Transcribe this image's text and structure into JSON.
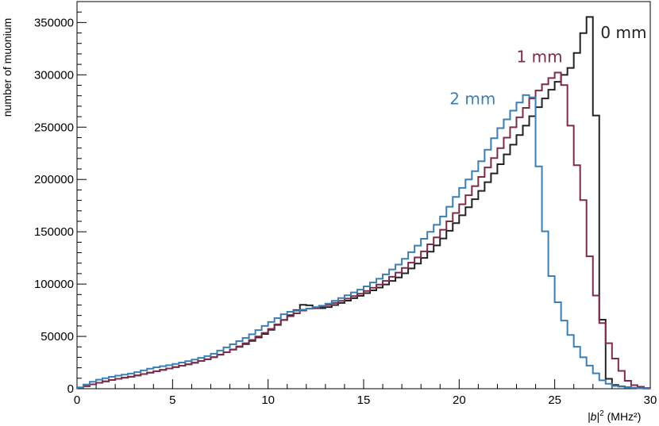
{
  "chart_data": {
    "type": "line",
    "style": "step-histogram",
    "xlabel_parts": {
      "main": "|b|",
      "sup": "2",
      "unit": "(MHz²)"
    },
    "ylabel": "number of muonium",
    "xlim": [
      0,
      30
    ],
    "ylim": [
      0,
      370000
    ],
    "grid": false,
    "bin_width": 0.3333,
    "x_ticks": [
      0,
      5,
      10,
      15,
      20,
      25,
      30
    ],
    "y_ticks": [
      0,
      50000,
      100000,
      150000,
      200000,
      250000,
      300000,
      350000
    ],
    "series": [
      {
        "name": "0 mm",
        "color": "#222222",
        "label_anchor": [
          27.4,
          335000
        ],
        "points": [
          [
            0,
            0
          ],
          [
            1,
            5000
          ],
          [
            2,
            9000
          ],
          [
            3,
            12000
          ],
          [
            4,
            16000
          ],
          [
            5,
            20000
          ],
          [
            6,
            24000
          ],
          [
            7,
            29000
          ],
          [
            8,
            36000
          ],
          [
            9,
            44000
          ],
          [
            10,
            54000
          ],
          [
            11,
            68000
          ],
          [
            11.7,
            78000
          ],
          [
            12,
            83000
          ],
          [
            12.3,
            77000
          ],
          [
            13,
            77000
          ],
          [
            14,
            83000
          ],
          [
            15,
            90000
          ],
          [
            16,
            98000
          ],
          [
            17,
            108000
          ],
          [
            18,
            122000
          ],
          [
            19,
            140000
          ],
          [
            20,
            162000
          ],
          [
            21,
            185000
          ],
          [
            22,
            210000
          ],
          [
            23,
            238000
          ],
          [
            24,
            265000
          ],
          [
            25,
            290000
          ],
          [
            25.5,
            300000
          ],
          [
            26,
            310000
          ],
          [
            26.3,
            330000
          ],
          [
            26.6,
            345000
          ],
          [
            26.8,
            355000
          ],
          [
            27.0,
            357000
          ],
          [
            27.2,
            240000
          ],
          [
            27.4,
            100000
          ],
          [
            27.6,
            30000
          ],
          [
            27.8,
            10000
          ],
          [
            28.2,
            3000
          ],
          [
            29,
            1000
          ],
          [
            30,
            0
          ]
        ]
      },
      {
        "name": "1 mm",
        "color": "#7c2b4b",
        "label_anchor": [
          23.0,
          312000
        ],
        "points": [
          [
            0,
            0
          ],
          [
            1,
            5000
          ],
          [
            2,
            9000
          ],
          [
            3,
            12000
          ],
          [
            4,
            16000
          ],
          [
            5,
            20000
          ],
          [
            6,
            24000
          ],
          [
            7,
            29000
          ],
          [
            8,
            36000
          ],
          [
            9,
            45000
          ],
          [
            10,
            55000
          ],
          [
            11,
            68000
          ],
          [
            12,
            76000
          ],
          [
            13,
            79000
          ],
          [
            14,
            85000
          ],
          [
            15,
            92000
          ],
          [
            16,
            101000
          ],
          [
            17,
            113000
          ],
          [
            18,
            128000
          ],
          [
            19,
            148000
          ],
          [
            20,
            172000
          ],
          [
            21,
            198000
          ],
          [
            22,
            225000
          ],
          [
            23,
            255000
          ],
          [
            24,
            282000
          ],
          [
            25,
            300000
          ],
          [
            25.3,
            304000
          ],
          [
            25.5,
            290000
          ],
          [
            25.8,
            255000
          ],
          [
            26.1,
            220000
          ],
          [
            26.5,
            180000
          ],
          [
            26.8,
            130000
          ],
          [
            27.2,
            85000
          ],
          [
            27.6,
            55000
          ],
          [
            28,
            35000
          ],
          [
            28.4,
            20000
          ],
          [
            28.8,
            8000
          ],
          [
            29.2,
            3000
          ],
          [
            30,
            0
          ]
        ]
      },
      {
        "name": "2 mm",
        "color": "#3a7fb5",
        "label_anchor": [
          19.5,
          272000
        ],
        "points": [
          [
            0,
            0
          ],
          [
            1,
            8000
          ],
          [
            2,
            12000
          ],
          [
            3,
            15000
          ],
          [
            4,
            20000
          ],
          [
            5,
            23000
          ],
          [
            6,
            27000
          ],
          [
            7,
            32000
          ],
          [
            8,
            41000
          ],
          [
            9,
            50000
          ],
          [
            10,
            62000
          ],
          [
            11,
            73000
          ],
          [
            12,
            76000
          ],
          [
            13,
            80000
          ],
          [
            14,
            88000
          ],
          [
            15,
            96000
          ],
          [
            16,
            107000
          ],
          [
            17,
            121000
          ],
          [
            18,
            140000
          ],
          [
            19,
            160000
          ],
          [
            20,
            188000
          ],
          [
            21,
            212000
          ],
          [
            22,
            245000
          ],
          [
            23,
            270000
          ],
          [
            23.7,
            285000
          ],
          [
            24.0,
            270000
          ],
          [
            24.2,
            200000
          ],
          [
            24.5,
            150000
          ],
          [
            24.8,
            110000
          ],
          [
            25.2,
            80000
          ],
          [
            25.6,
            60000
          ],
          [
            26,
            45000
          ],
          [
            26.5,
            30000
          ],
          [
            27,
            18000
          ],
          [
            27.5,
            8000
          ],
          [
            28,
            3000
          ],
          [
            29,
            1000
          ],
          [
            30,
            0
          ]
        ]
      }
    ]
  }
}
